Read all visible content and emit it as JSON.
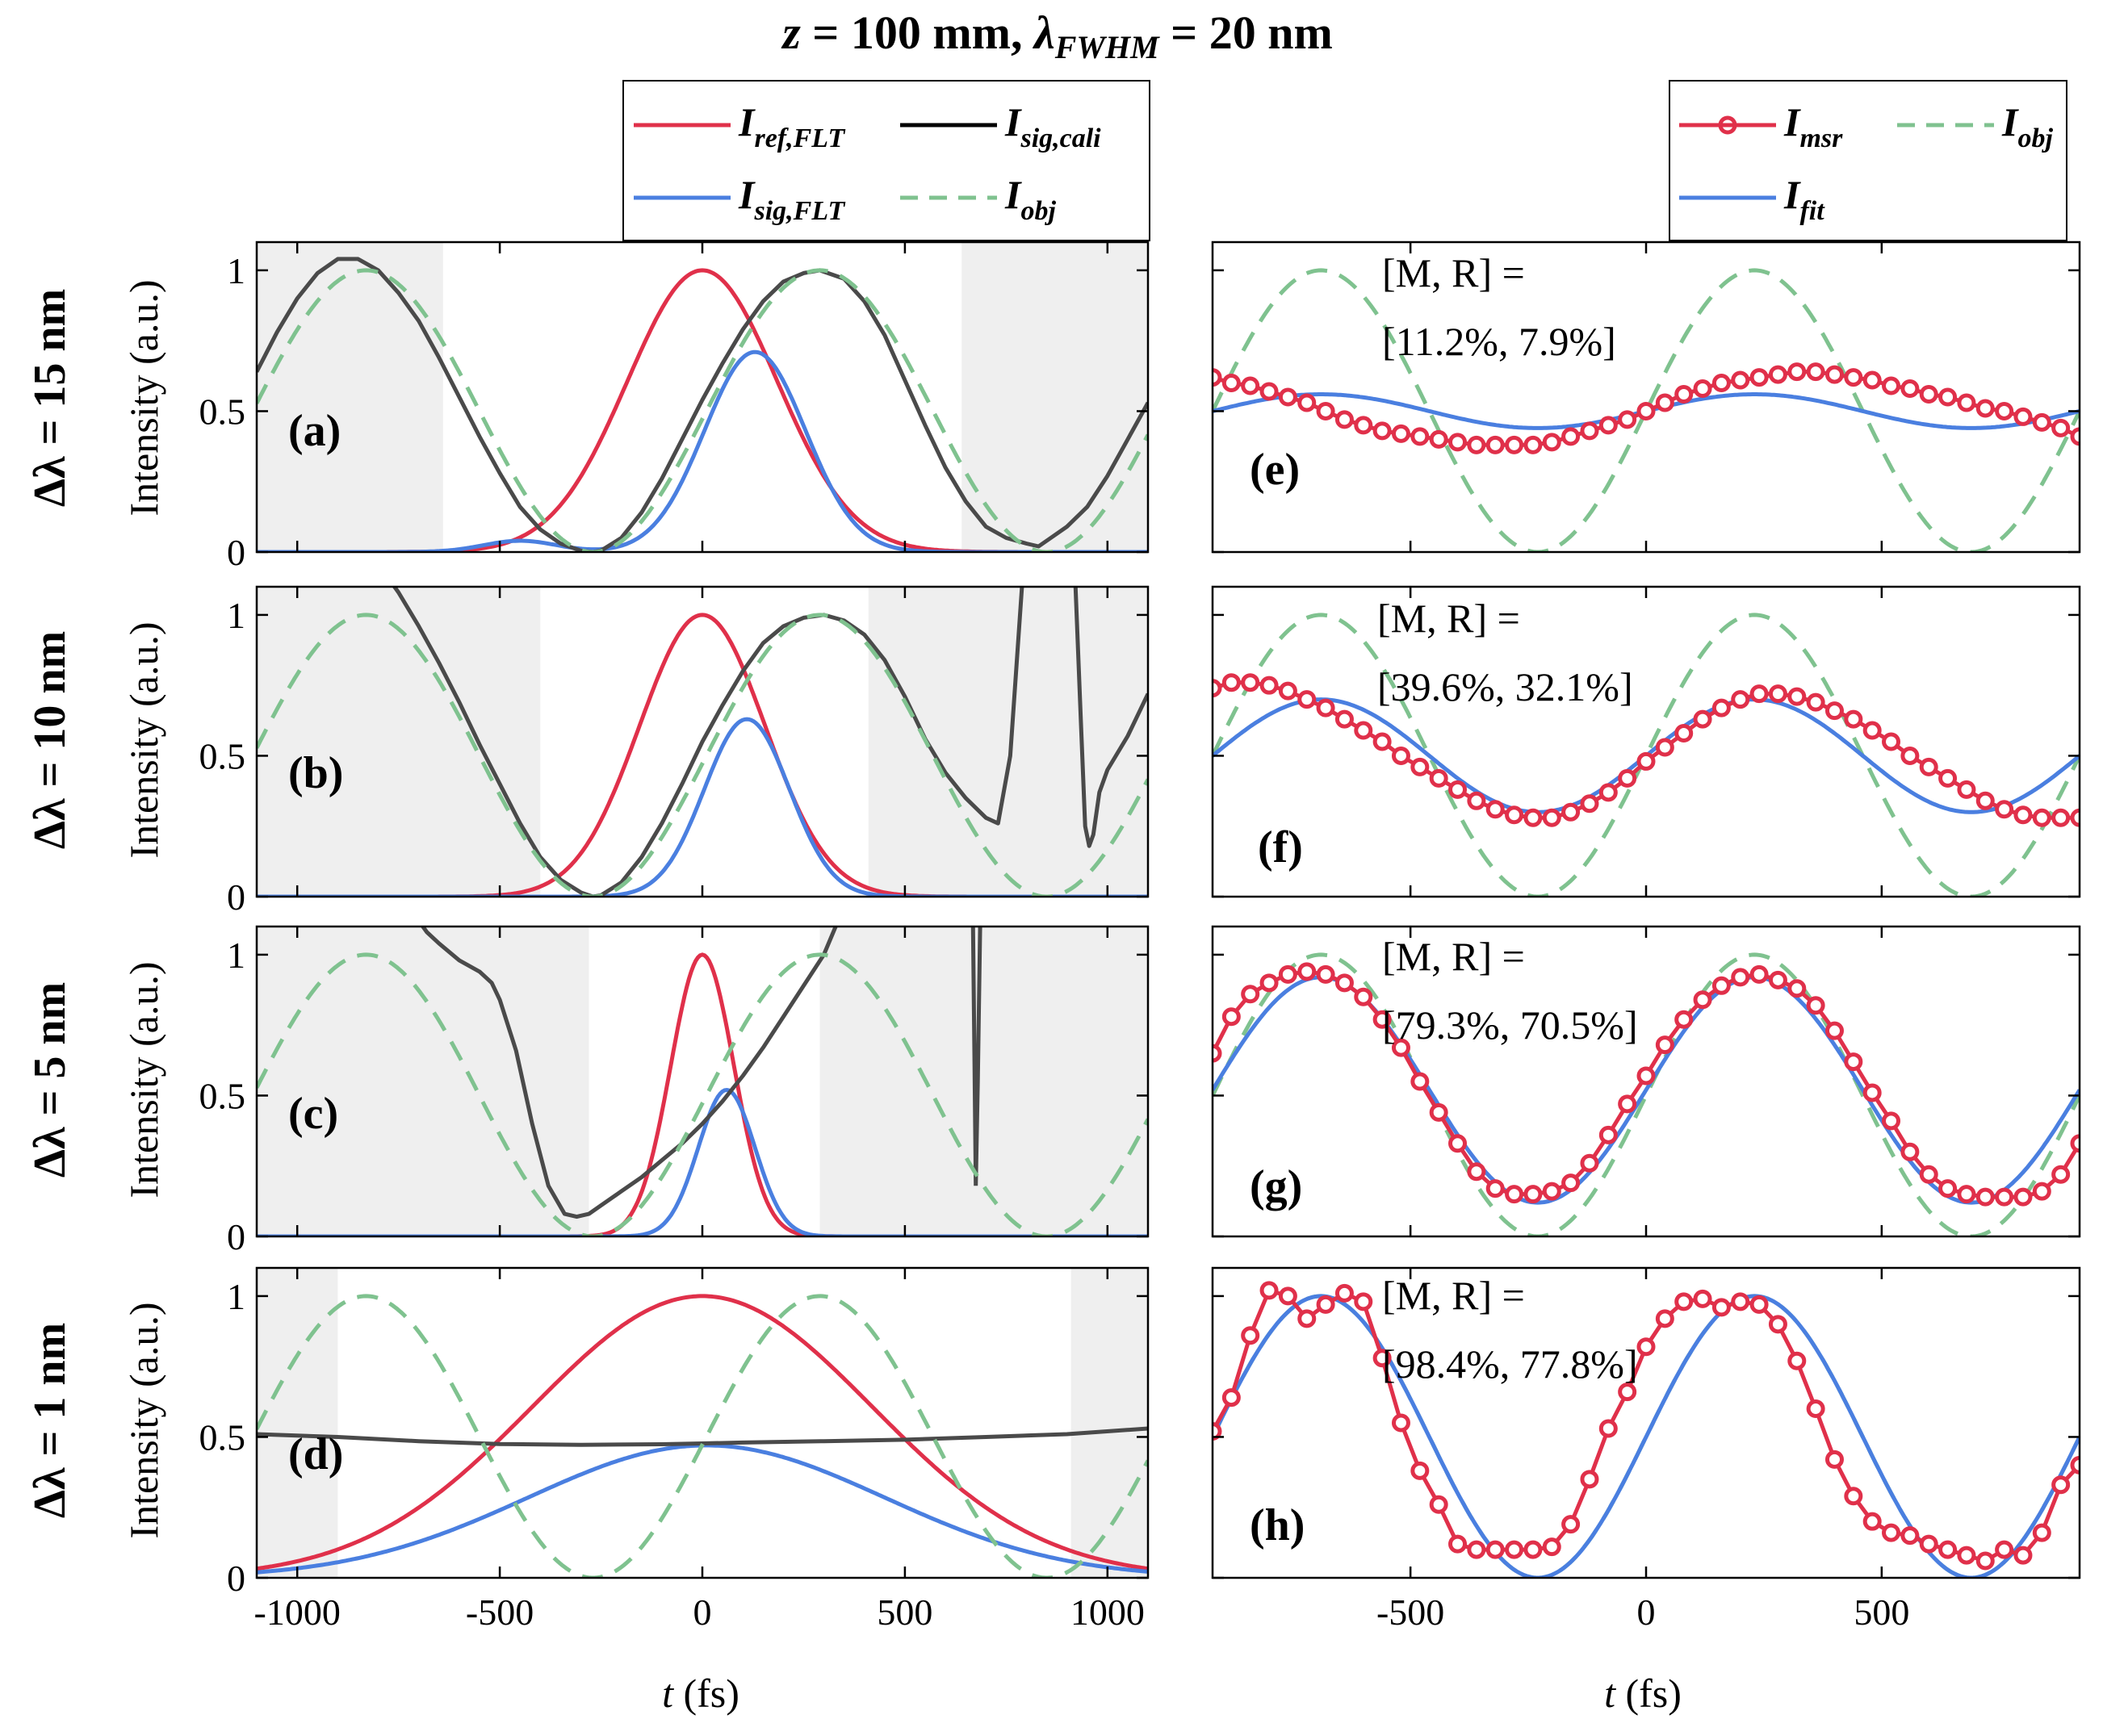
{
  "figure": {
    "title_pre": "z",
    "title_mid": " = 100 mm, ",
    "title_lambda": "λ",
    "title_sub": "FWHM",
    "title_post": " = 20 nm",
    "ylabel": "Intensity (a.u.)",
    "xlabel_var": "t",
    "xlabel_unit": " (fs)",
    "row_labels": [
      "Δλ = 15 nm",
      "Δλ = 10 nm",
      "Δλ = 5 nm",
      "Δλ = 1 nm"
    ],
    "panel_labels_left": [
      "(a)",
      "(b)",
      "(c)",
      "(d)"
    ],
    "panel_labels_right": [
      "(e)",
      "(f)",
      "(g)",
      "(h)"
    ],
    "mr_header": "[M, R] =",
    "mr_values": [
      "[11.2%, 7.9%]",
      "[39.6%, 32.1%]",
      "[79.3%, 70.5%]",
      "[98.4%, 77.8%]"
    ]
  },
  "legend_left": [
    {
      "main": "I",
      "sub": "ref,FLT",
      "color": "#e0304a",
      "style": "solid"
    },
    {
      "main": "I",
      "sub": "sig,cali",
      "color": "#000000",
      "style": "solid"
    },
    {
      "main": "I",
      "sub": "sig,FLT",
      "color": "#4a7fe0",
      "style": "solid"
    },
    {
      "main": "I",
      "sub": "obj",
      "color": "#7fc28f",
      "style": "dashed"
    }
  ],
  "legend_right": [
    {
      "main": "I",
      "sub": "msr",
      "color": "#e0304a",
      "style": "marker"
    },
    {
      "main": "I",
      "sub": "obj",
      "color": "#7fc28f",
      "style": "dashed"
    },
    {
      "main": "I",
      "sub": "fit",
      "color": "#4a7fe0",
      "style": "solid"
    }
  ],
  "colors": {
    "ref": "#e0304a",
    "cali": "#000000",
    "cali_grey": "#4a4a4a",
    "sig": "#4a7fe0",
    "obj": "#7fc28f",
    "msr": "#e0304a",
    "fit": "#4a7fe0",
    "shade": "#efefef"
  },
  "chart_data": [
    {
      "type": "line",
      "panel": "(a)",
      "xlim": [
        -1100,
        1100
      ],
      "ylim": [
        0,
        1.1
      ],
      "xticks": [
        -1000,
        -500,
        0,
        500,
        1000
      ],
      "yticks": [
        0,
        0.5,
        1
      ],
      "ytick_labels": [
        "0",
        "0.5",
        "1"
      ],
      "ref": {
        "center": 0,
        "sigma": 185
      },
      "sig": {
        "amp": 0.71,
        "center": 130,
        "sigma": 125,
        "bump_amp": 0.04,
        "bump_center": -450,
        "bump_sigma": 90
      },
      "obj": {
        "period": 1120,
        "zero": -270
      },
      "cali_x": [
        -1100,
        -1050,
        -1000,
        -950,
        -900,
        -850,
        -800,
        -750,
        -700,
        -650,
        -600,
        -550,
        -500,
        -450,
        -400,
        -350,
        -300,
        -270,
        -250,
        -200,
        -150,
        -100,
        -50,
        0,
        50,
        100,
        150,
        200,
        250,
        290,
        350,
        400,
        450,
        500,
        550,
        600,
        650,
        700,
        750,
        800,
        830,
        860,
        900,
        950,
        1000,
        1050,
        1100
      ],
      "cali_y": [
        0.64,
        0.78,
        0.9,
        0.99,
        1.04,
        1.04,
        1.0,
        0.92,
        0.82,
        0.69,
        0.55,
        0.41,
        0.28,
        0.16,
        0.08,
        0.03,
        0.005,
        0.0,
        0.005,
        0.05,
        0.14,
        0.26,
        0.4,
        0.54,
        0.67,
        0.79,
        0.89,
        0.96,
        0.99,
        1.0,
        0.97,
        0.89,
        0.77,
        0.61,
        0.45,
        0.3,
        0.18,
        0.09,
        0.05,
        0.03,
        0.02,
        0.05,
        0.09,
        0.16,
        0.27,
        0.4,
        0.53
      ],
      "shade_ranges": [
        [
          -1100,
          -640
        ],
        [
          640,
          1100
        ]
      ]
    },
    {
      "type": "line",
      "panel": "(b)",
      "xlim": [
        -1100,
        1100
      ],
      "ylim": [
        0,
        1.1
      ],
      "xticks": [
        -1000,
        -500,
        0,
        500,
        1000
      ],
      "yticks": [
        0,
        0.5,
        1
      ],
      "ytick_labels": [
        "0",
        "0.5",
        "1"
      ],
      "ref": {
        "center": 0,
        "sigma": 155
      },
      "sig": {
        "amp": 0.63,
        "center": 110,
        "sigma": 105,
        "bump_amp": 0.0,
        "bump_center": 0,
        "bump_sigma": 100
      },
      "obj": {
        "period": 1120,
        "zero": -270
      },
      "cali_x": [
        -780,
        -750,
        -700,
        -650,
        -600,
        -550,
        -500,
        -450,
        -400,
        -350,
        -300,
        -270,
        -250,
        -200,
        -150,
        -100,
        -50,
        0,
        50,
        100,
        150,
        200,
        250,
        300,
        350,
        400,
        450,
        500,
        550,
        600,
        650,
        700,
        730,
        760,
        790,
        800,
        810,
        830,
        860,
        900,
        920,
        935,
        945,
        955,
        965,
        980,
        1000,
        1050,
        1100
      ],
      "cali_y": [
        1.14,
        1.08,
        0.96,
        0.83,
        0.69,
        0.54,
        0.4,
        0.26,
        0.14,
        0.06,
        0.015,
        0.0,
        0.005,
        0.05,
        0.14,
        0.26,
        0.4,
        0.55,
        0.68,
        0.8,
        0.9,
        0.96,
        0.99,
        1.0,
        0.98,
        0.93,
        0.84,
        0.71,
        0.56,
        0.44,
        0.35,
        0.28,
        0.26,
        0.5,
        1.12,
        1.14,
        1.14,
        1.14,
        1.14,
        1.14,
        1.14,
        0.6,
        0.25,
        0.18,
        0.22,
        0.37,
        0.45,
        0.57,
        0.72
      ],
      "shade_ranges": [
        [
          -1100,
          -400
        ],
        [
          410,
          1100
        ]
      ]
    },
    {
      "type": "line",
      "panel": "(c)",
      "xlim": [
        -1100,
        1100
      ],
      "ylim": [
        0,
        1.1
      ],
      "xticks": [
        -1000,
        -500,
        0,
        500,
        1000
      ],
      "yticks": [
        0,
        0.5,
        1
      ],
      "ytick_labels": [
        "0",
        "0.5",
        "1"
      ],
      "ref": {
        "center": 0,
        "sigma": 78
      },
      "sig": {
        "amp": 0.52,
        "center": 60,
        "sigma": 70,
        "bump_amp": 0.0,
        "bump_center": 0,
        "bump_sigma": 100
      },
      "obj": {
        "period": 1120,
        "zero": -270
      },
      "cali_x": [
        -700,
        -680,
        -650,
        -600,
        -550,
        -520,
        -500,
        -460,
        -420,
        -380,
        -340,
        -310,
        -280,
        -250,
        -200,
        -150,
        -100,
        -50,
        0,
        50,
        100,
        150,
        200,
        250,
        300,
        335
      ],
      "cali_y": [
        1.12,
        1.08,
        1.04,
        0.98,
        0.94,
        0.9,
        0.84,
        0.66,
        0.4,
        0.18,
        0.08,
        0.07,
        0.08,
        0.11,
        0.16,
        0.21,
        0.27,
        0.33,
        0.4,
        0.48,
        0.57,
        0.67,
        0.78,
        0.89,
        1.0,
        1.12
      ],
      "spike_x": [
        660,
        668,
        672,
        675,
        680,
        686,
        695
      ],
      "spike_y": [
        1.12,
        1.12,
        0.6,
        0.18,
        0.55,
        1.12,
        1.12
      ],
      "shade_ranges": [
        [
          -1100,
          -280
        ],
        [
          290,
          1100
        ]
      ]
    },
    {
      "type": "line",
      "panel": "(d)",
      "xlim": [
        -1100,
        1100
      ],
      "ylim": [
        0,
        1.1
      ],
      "xticks": [
        -1000,
        -500,
        0,
        500,
        1000
      ],
      "yticks": [
        0,
        0.5,
        1
      ],
      "ytick_labels": [
        "0",
        "0.5",
        "1"
      ],
      "ref": {
        "center": 0,
        "sigma": 420
      },
      "sig": {
        "amp": 0.47,
        "center": 10,
        "sigma": 440,
        "bump_amp": 0.0,
        "bump_center": 0,
        "bump_sigma": 100
      },
      "obj": {
        "period": 1120,
        "zero": -270
      },
      "cali_x": [
        -1100,
        -900,
        -700,
        -500,
        -300,
        -100,
        0,
        100,
        300,
        500,
        700,
        900,
        1100
      ],
      "cali_y": [
        0.51,
        0.5,
        0.485,
        0.475,
        0.472,
        0.474,
        0.477,
        0.48,
        0.485,
        0.49,
        0.5,
        0.51,
        0.53
      ],
      "shade_ranges": [
        [
          -1100,
          -900
        ],
        [
          910,
          1100
        ]
      ]
    },
    {
      "type": "line",
      "panel": "(e)",
      "xlim": [
        -920,
        920
      ],
      "ylim": [
        0,
        1.1
      ],
      "xticks": [
        -500,
        0,
        500
      ],
      "yticks": [
        0,
        0.5,
        1
      ],
      "ytick_labels": [
        "",
        "",
        ""
      ],
      "obj": {
        "period": 920,
        "zero": -230
      },
      "fit": {
        "center": 0.5,
        "amp": 0.06,
        "period": 920,
        "peak": 230
      },
      "msr_x": [
        -920,
        -880,
        -840,
        -800,
        -760,
        -720,
        -680,
        -640,
        -600,
        -560,
        -520,
        -480,
        -440,
        -400,
        -360,
        -320,
        -280,
        -240,
        -200,
        -160,
        -120,
        -80,
        -40,
        0,
        40,
        80,
        120,
        160,
        200,
        240,
        280,
        320,
        360,
        400,
        440,
        480,
        520,
        560,
        600,
        640,
        680,
        720,
        760,
        800,
        840,
        880,
        920
      ],
      "msr_y": [
        0.62,
        0.6,
        0.59,
        0.57,
        0.55,
        0.53,
        0.5,
        0.47,
        0.45,
        0.43,
        0.42,
        0.41,
        0.4,
        0.39,
        0.38,
        0.38,
        0.38,
        0.38,
        0.39,
        0.41,
        0.43,
        0.45,
        0.47,
        0.5,
        0.53,
        0.56,
        0.58,
        0.6,
        0.61,
        0.62,
        0.63,
        0.64,
        0.64,
        0.63,
        0.62,
        0.61,
        0.59,
        0.58,
        0.56,
        0.55,
        0.53,
        0.51,
        0.5,
        0.48,
        0.46,
        0.44,
        0.41
      ]
    },
    {
      "type": "line",
      "panel": "(f)",
      "xlim": [
        -920,
        920
      ],
      "ylim": [
        0,
        1.1
      ],
      "xticks": [
        -500,
        0,
        500
      ],
      "yticks": [
        0,
        0.5,
        1
      ],
      "ytick_labels": [
        "",
        "",
        ""
      ],
      "obj": {
        "period": 920,
        "zero": -230
      },
      "fit": {
        "center": 0.5,
        "amp": 0.2,
        "period": 920,
        "peak": 230
      },
      "msr_x": [
        -920,
        -880,
        -840,
        -800,
        -760,
        -720,
        -680,
        -640,
        -600,
        -560,
        -520,
        -480,
        -440,
        -400,
        -360,
        -320,
        -280,
        -240,
        -200,
        -160,
        -120,
        -80,
        -40,
        0,
        40,
        80,
        120,
        160,
        200,
        240,
        280,
        320,
        360,
        400,
        440,
        480,
        520,
        560,
        600,
        640,
        680,
        720,
        760,
        800,
        840,
        880,
        920
      ],
      "msr_y": [
        0.74,
        0.76,
        0.76,
        0.75,
        0.73,
        0.7,
        0.67,
        0.63,
        0.59,
        0.55,
        0.5,
        0.46,
        0.42,
        0.38,
        0.34,
        0.31,
        0.29,
        0.28,
        0.28,
        0.3,
        0.33,
        0.37,
        0.42,
        0.48,
        0.53,
        0.58,
        0.63,
        0.67,
        0.7,
        0.72,
        0.72,
        0.71,
        0.69,
        0.66,
        0.63,
        0.59,
        0.55,
        0.5,
        0.46,
        0.42,
        0.38,
        0.34,
        0.31,
        0.29,
        0.28,
        0.28,
        0.28
      ]
    },
    {
      "type": "line",
      "panel": "(g)",
      "xlim": [
        -920,
        920
      ],
      "ylim": [
        0,
        1.1
      ],
      "xticks": [
        -500,
        0,
        500
      ],
      "yticks": [
        0,
        0.5,
        1
      ],
      "ytick_labels": [
        "",
        "",
        ""
      ],
      "obj": {
        "period": 920,
        "zero": -230
      },
      "fit": {
        "center": 0.52,
        "amp": 0.4,
        "period": 920,
        "peak": 230
      },
      "msr_x": [
        -920,
        -880,
        -840,
        -800,
        -760,
        -720,
        -680,
        -640,
        -600,
        -560,
        -520,
        -480,
        -440,
        -400,
        -360,
        -320,
        -280,
        -240,
        -200,
        -160,
        -120,
        -80,
        -40,
        0,
        40,
        80,
        120,
        160,
        200,
        240,
        280,
        320,
        360,
        400,
        440,
        480,
        520,
        560,
        600,
        640,
        680,
        720,
        760,
        800,
        840,
        880,
        920
      ],
      "msr_y": [
        0.65,
        0.78,
        0.86,
        0.9,
        0.93,
        0.94,
        0.93,
        0.9,
        0.85,
        0.77,
        0.67,
        0.55,
        0.44,
        0.33,
        0.23,
        0.17,
        0.15,
        0.15,
        0.16,
        0.19,
        0.26,
        0.36,
        0.47,
        0.57,
        0.68,
        0.77,
        0.84,
        0.89,
        0.92,
        0.93,
        0.91,
        0.88,
        0.82,
        0.73,
        0.62,
        0.51,
        0.41,
        0.3,
        0.22,
        0.17,
        0.15,
        0.14,
        0.14,
        0.14,
        0.16,
        0.22,
        0.33
      ]
    },
    {
      "type": "line",
      "panel": "(h)",
      "xlim": [
        -920,
        920
      ],
      "ylim": [
        0,
        1.1
      ],
      "xticks": [
        -500,
        0,
        500
      ],
      "yticks": [
        0,
        0.5,
        1
      ],
      "ytick_labels": [
        "",
        "",
        ""
      ],
      "obj": {
        "period": 920,
        "zero": -230
      },
      "fit": {
        "center": 0.5,
        "amp": 0.5,
        "period": 920,
        "peak": 230
      },
      "msr_x": [
        -920,
        -880,
        -840,
        -800,
        -760,
        -720,
        -680,
        -640,
        -600,
        -560,
        -520,
        -480,
        -440,
        -400,
        -360,
        -320,
        -280,
        -240,
        -200,
        -160,
        -120,
        -80,
        -40,
        0,
        40,
        80,
        120,
        160,
        200,
        240,
        280,
        320,
        360,
        400,
        440,
        480,
        520,
        560,
        600,
        640,
        680,
        720,
        760,
        800,
        840,
        880,
        920
      ],
      "msr_y": [
        0.52,
        0.64,
        0.86,
        1.02,
        1.0,
        0.92,
        0.97,
        1.01,
        0.98,
        0.78,
        0.55,
        0.38,
        0.26,
        0.12,
        0.1,
        0.1,
        0.1,
        0.1,
        0.11,
        0.19,
        0.35,
        0.53,
        0.66,
        0.82,
        0.92,
        0.98,
        0.99,
        0.96,
        0.98,
        0.97,
        0.9,
        0.77,
        0.6,
        0.42,
        0.29,
        0.2,
        0.16,
        0.15,
        0.12,
        0.1,
        0.08,
        0.06,
        0.1,
        0.08,
        0.16,
        0.33,
        0.4
      ]
    }
  ]
}
